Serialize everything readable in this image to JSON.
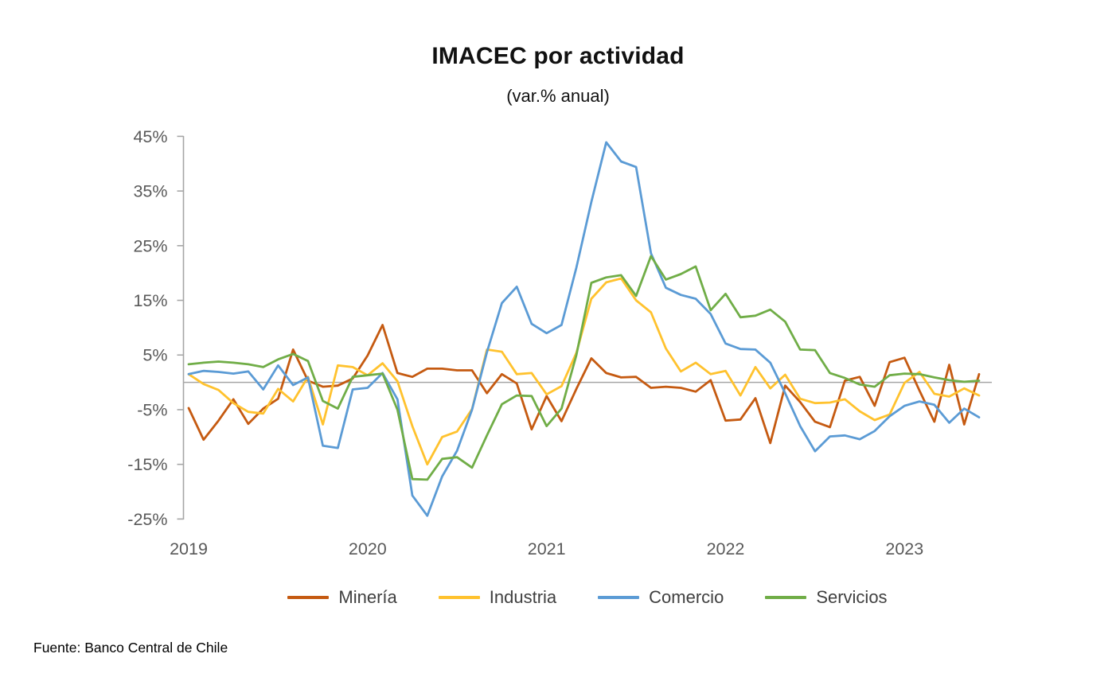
{
  "title": "IMACEC por actividad",
  "subtitle": "(var.% anual)",
  "source": "Fuente: Banco Central de Chile",
  "chart_data": {
    "type": "line",
    "frequency": "monthly",
    "start_month": "2019-01",
    "end_month": "2023-06",
    "ylim": [
      -25,
      45
    ],
    "y_ticks": [
      45,
      35,
      25,
      15,
      5,
      -5,
      -15,
      -25
    ],
    "y_tick_suffix": "%",
    "x_ticks": [
      {
        "label": "2019",
        "month_index": 0
      },
      {
        "label": "2020",
        "month_index": 12
      },
      {
        "label": "2021",
        "month_index": 24
      },
      {
        "label": "2022",
        "month_index": 36
      },
      {
        "label": "2023",
        "month_index": 48
      }
    ],
    "zero_line": true,
    "grid": false,
    "legend_position": "bottom",
    "series": [
      {
        "id": "mineria",
        "name": "Minería",
        "color": "#C55A11",
        "values": [
          -4.7,
          -10.5,
          -7.0,
          -3.1,
          -7.6,
          -4.8,
          -3.0,
          6.0,
          0.3,
          -0.8,
          -0.6,
          0.7,
          4.9,
          10.5,
          1.7,
          1.0,
          2.5,
          2.5,
          2.2,
          2.2,
          -2.0,
          1.5,
          -0.2,
          -8.6,
          -2.5,
          -7.1,
          -1.2,
          4.4,
          1.7,
          0.9,
          1.0,
          -1.0,
          -0.8,
          -1.0,
          -1.7,
          0.4,
          -7.0,
          -6.8,
          -2.9,
          -11.1,
          -0.6,
          -3.6,
          -7.2,
          -8.2,
          0.3,
          1.0,
          -4.3,
          3.7,
          4.5,
          -1.5,
          -7.2,
          3.2,
          -7.7,
          1.5
        ]
      },
      {
        "id": "industria",
        "name": "Industria",
        "color": "#FFC22E",
        "values": [
          1.5,
          -0.3,
          -1.4,
          -3.8,
          -5.4,
          -5.7,
          -1.2,
          -3.5,
          1.0,
          -7.7,
          3.1,
          2.8,
          1.3,
          3.5,
          0.2,
          -8.0,
          -15.0,
          -10.0,
          -9.0,
          -4.9,
          6.0,
          5.6,
          1.5,
          1.7,
          -2.2,
          -0.7,
          5.4,
          15.3,
          18.3,
          19.0,
          15.0,
          12.8,
          6.2,
          2.0,
          3.6,
          1.5,
          2.1,
          -2.4,
          2.8,
          -1.1,
          1.4,
          -3.0,
          -3.8,
          -3.7,
          -3.1,
          -5.3,
          -6.9,
          -5.9,
          -0.1,
          1.9,
          -2.1,
          -2.6,
          -1.1,
          -2.4
        ]
      },
      {
        "id": "comercio",
        "name": "Comercio",
        "color": "#5B9BD5",
        "values": [
          1.5,
          2.1,
          1.9,
          1.6,
          2.0,
          -1.3,
          3.1,
          -0.5,
          0.9,
          -11.6,
          -12.0,
          -1.3,
          -1.0,
          1.7,
          -3.1,
          -20.7,
          -24.4,
          -17.2,
          -12.5,
          -5.0,
          5.5,
          14.5,
          17.5,
          10.7,
          9.0,
          10.5,
          21.0,
          33.0,
          43.9,
          40.4,
          39.4,
          23.6,
          17.3,
          16.0,
          15.3,
          12.5,
          7.1,
          6.1,
          6.0,
          3.6,
          -2.0,
          -8.0,
          -12.6,
          -9.9,
          -9.7,
          -10.4,
          -8.9,
          -6.2,
          -4.3,
          -3.5,
          -4.1,
          -7.4,
          -4.8,
          -6.4
        ]
      },
      {
        "id": "servicios",
        "name": "Servicios",
        "color": "#70AD47",
        "values": [
          3.3,
          3.6,
          3.8,
          3.6,
          3.3,
          2.8,
          4.2,
          5.2,
          3.9,
          -3.4,
          -4.8,
          1.0,
          1.3,
          1.6,
          -5.0,
          -17.7,
          -17.8,
          -14.0,
          -13.7,
          -15.6,
          -9.7,
          -4.0,
          -2.4,
          -2.5,
          -8.0,
          -4.8,
          5.0,
          18.2,
          19.2,
          19.6,
          15.8,
          23.1,
          18.8,
          19.8,
          21.2,
          13.2,
          16.2,
          11.9,
          12.2,
          13.3,
          11.1,
          6.0,
          5.9,
          1.7,
          0.8,
          -0.4,
          -0.8,
          1.3,
          1.6,
          1.5,
          0.9,
          0.4,
          0.1,
          0.3
        ]
      }
    ]
  }
}
